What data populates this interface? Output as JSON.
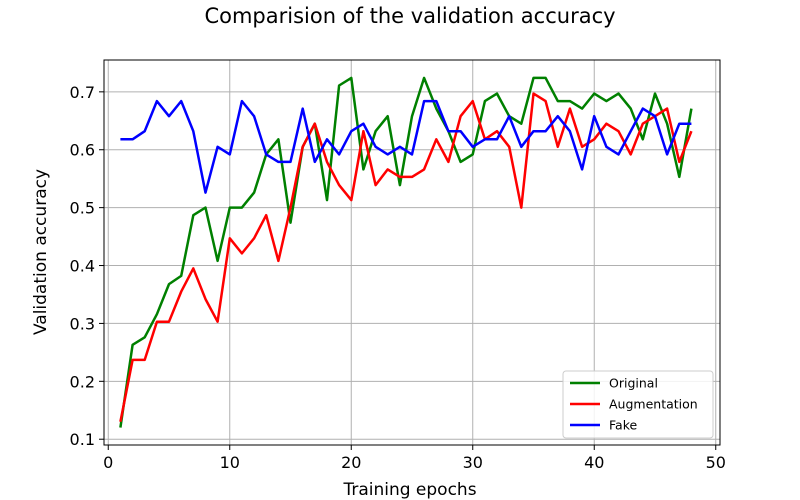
{
  "chart_data": {
    "type": "line",
    "title": "Comparision of the validation accuracy",
    "xlabel": "Training epochs",
    "ylabel": "Validation accuracy",
    "xlim": [
      -0.35,
      50.35
    ],
    "ylim": [
      0.09,
      0.755
    ],
    "xticks": [
      0,
      10,
      20,
      30,
      40,
      50
    ],
    "yticks": [
      0.1,
      0.2,
      0.3,
      0.4,
      0.5,
      0.6,
      0.7
    ],
    "grid": true,
    "legend_position": "lower-right",
    "x": [
      1,
      2,
      3,
      4,
      5,
      6,
      7,
      8,
      9,
      10,
      11,
      12,
      13,
      14,
      15,
      16,
      17,
      18,
      19,
      20,
      21,
      22,
      23,
      24,
      25,
      26,
      27,
      28,
      29,
      30,
      31,
      32,
      33,
      34,
      35,
      36,
      37,
      38,
      39,
      40,
      41,
      42,
      43,
      44,
      45,
      46,
      47,
      48
    ],
    "series": [
      {
        "name": "Original",
        "color": "#008000",
        "values": [
          0.12,
          0.263,
          0.276,
          0.316,
          0.368,
          0.382,
          0.487,
          0.5,
          0.408,
          0.5,
          0.5,
          0.526,
          0.592,
          0.618,
          0.474,
          0.605,
          0.645,
          0.513,
          0.711,
          0.724,
          0.566,
          0.632,
          0.658,
          0.539,
          0.658,
          0.724,
          0.671,
          0.632,
          0.579,
          0.592,
          0.684,
          0.697,
          0.658,
          0.645,
          0.724,
          0.724,
          0.684,
          0.684,
          0.671,
          0.697,
          0.684,
          0.697,
          0.671,
          0.618,
          0.697,
          0.645,
          0.553,
          0.671
        ]
      },
      {
        "name": "Augmentation",
        "color": "#ff0000",
        "values": [
          0.13,
          0.237,
          0.237,
          0.303,
          0.303,
          0.355,
          0.395,
          0.342,
          0.303,
          0.447,
          0.421,
          0.447,
          0.487,
          0.408,
          0.5,
          0.605,
          0.645,
          0.579,
          0.539,
          0.513,
          0.632,
          0.539,
          0.566,
          0.553,
          0.553,
          0.566,
          0.618,
          0.579,
          0.658,
          0.684,
          0.618,
          0.632,
          0.605,
          0.5,
          0.697,
          0.684,
          0.605,
          0.671,
          0.605,
          0.618,
          0.645,
          0.632,
          0.592,
          0.645,
          0.658,
          0.671,
          0.579,
          0.632
        ]
      },
      {
        "name": "Fake",
        "color": "#0000ff",
        "values": [
          0.618,
          0.618,
          0.632,
          0.684,
          0.658,
          0.684,
          0.632,
          0.526,
          0.605,
          0.592,
          0.684,
          0.658,
          0.592,
          0.579,
          0.579,
          0.671,
          0.579,
          0.618,
          0.592,
          0.632,
          0.645,
          0.605,
          0.592,
          0.605,
          0.592,
          0.684,
          0.684,
          0.632,
          0.632,
          0.605,
          0.618,
          0.618,
          0.658,
          0.605,
          0.632,
          0.632,
          0.658,
          0.632,
          0.566,
          0.658,
          0.605,
          0.592,
          0.632,
          0.671,
          0.658,
          0.592,
          0.645,
          0.645
        ]
      }
    ]
  }
}
